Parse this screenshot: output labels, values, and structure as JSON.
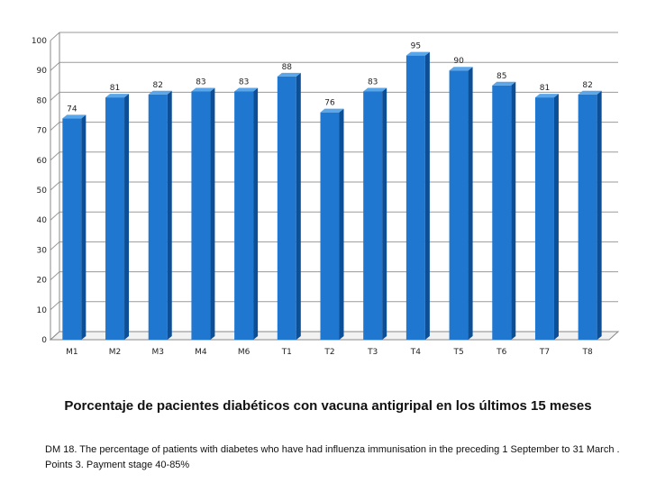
{
  "chart_data": {
    "type": "bar",
    "title": "Porcentaje de pacientes diabéticos con vacuna antigripal en los últimos 15 meses",
    "categories": [
      "M1",
      "M2",
      "M3",
      "M4",
      "M6",
      "T1",
      "T2",
      "T3",
      "T4",
      "T5",
      "T6",
      "T7",
      "T8"
    ],
    "values": [
      74,
      81,
      82,
      83,
      83,
      88,
      76,
      83,
      95,
      90,
      85,
      81,
      82
    ],
    "ylim": [
      0,
      100
    ],
    "yticks": [
      0,
      10,
      20,
      30,
      40,
      50,
      60,
      70,
      80,
      90,
      100
    ],
    "grid": true,
    "xlabel": "",
    "ylabel": "",
    "bar_color": "#1f77d0",
    "bar_side_color": "#0d4f96",
    "bar_top_color": "#5aa6ea"
  },
  "footnote": "DM 18. The percentage of patients with diabetes who have had influenza immunisation in the preceding 1 September to 31 March . Points 3. Payment stage 40-85%"
}
